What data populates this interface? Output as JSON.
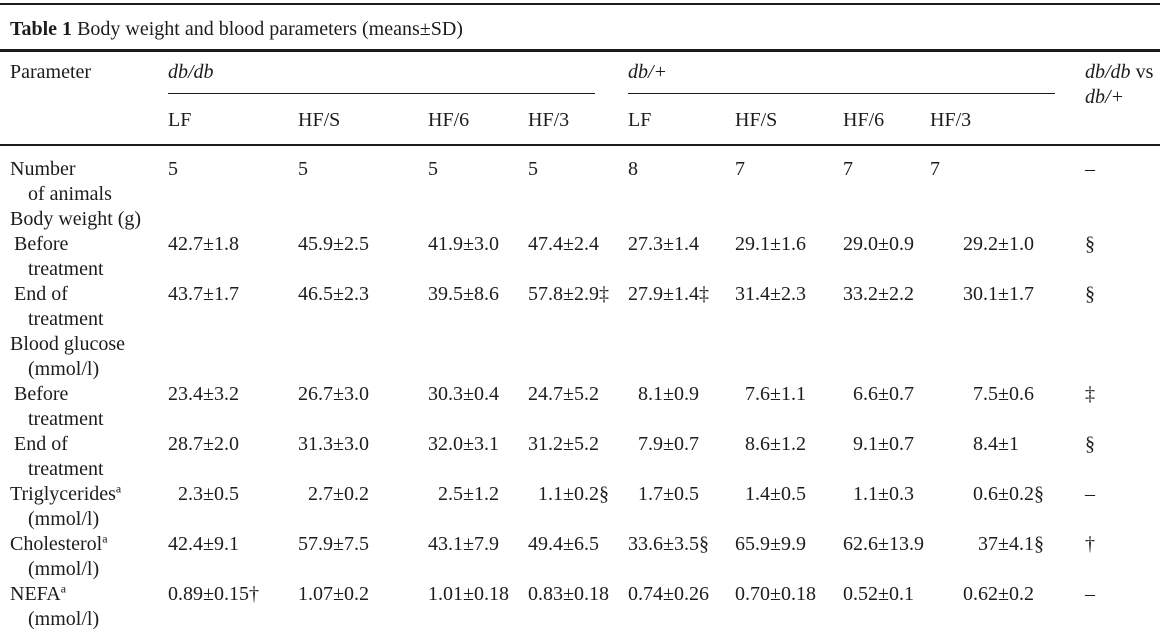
{
  "colors": {
    "ink": "#1c1c1c",
    "rule": "#1c1c1c"
  },
  "caption": {
    "label": "Table 1",
    "text": " Body weight and blood parameters (means±SD)"
  },
  "header": {
    "parameter": "Parameter",
    "group1": "db/db",
    "group2": "db/+",
    "vs": {
      "line1_em": "db/db",
      "line1_rest": " vs",
      "line2_em": "db/+"
    },
    "subcols": [
      "LF",
      "HF/S",
      "HF/6",
      "HF/3",
      "LF",
      "HF/S",
      "HF/6",
      "HF/3"
    ]
  },
  "rows": [
    {
      "label_lines": [
        {
          "t": "Number",
          "ind": 0
        },
        {
          "t": "of animals",
          "ind": 2
        }
      ],
      "values": [
        "5",
        "5",
        "5",
        "5",
        "8",
        "7",
        "7",
        "7"
      ],
      "sig": "–"
    },
    {
      "label_lines": [
        {
          "t": "Body weight (g)",
          "ind": 0
        }
      ],
      "values": [
        "",
        "",
        "",
        "",
        "",
        "",
        "",
        ""
      ],
      "sig": ""
    },
    {
      "label_lines": [
        {
          "t": "Before",
          "ind": 1
        },
        {
          "t": "treatment",
          "ind": 2
        }
      ],
      "values": [
        "42.7±1.8",
        "45.9±2.5",
        "41.9±3.0",
        "47.4±2.4",
        "27.3±1.4",
        "29.1±1.6",
        "29.0±0.9",
        "29.2±1.0"
      ],
      "sig": "§"
    },
    {
      "label_lines": [
        {
          "t": "End of",
          "ind": 1
        },
        {
          "t": "treatment",
          "ind": 2
        }
      ],
      "values": [
        "43.7±1.7",
        "46.5±2.3",
        "39.5±8.6",
        "57.8±2.9‡",
        "27.9±1.4‡",
        "31.4±2.3",
        "33.2±2.2",
        "30.1±1.7"
      ],
      "sig": "§"
    },
    {
      "label_lines": [
        {
          "t": "Blood glucose",
          "ind": 0
        },
        {
          "t": "(mmol/l)",
          "ind": 2
        }
      ],
      "values": [
        "",
        "",
        "",
        "",
        "",
        "",
        "",
        ""
      ],
      "sig": ""
    },
    {
      "label_lines": [
        {
          "t": "Before",
          "ind": 1
        },
        {
          "t": "treatment",
          "ind": 2
        }
      ],
      "values": [
        "23.4±3.2",
        "26.7±3.0",
        "30.3±0.4",
        "24.7±5.2",
        "8.1±0.9",
        "7.6±1.1",
        "6.6±0.7",
        "7.5±0.6"
      ],
      "sig": "‡"
    },
    {
      "label_lines": [
        {
          "t": "End of",
          "ind": 1
        },
        {
          "t": "treatment",
          "ind": 2
        }
      ],
      "values": [
        "28.7±2.0",
        "31.3±3.0",
        "32.0±3.1",
        "31.2±5.2",
        "7.9±0.7",
        "8.6±1.2",
        "9.1±0.7",
        "8.4±1"
      ],
      "sig": "§"
    },
    {
      "label_lines": [
        {
          "t": "Triglycerides",
          "sup": "a",
          "ind": 0
        },
        {
          "t": "(mmol/l)",
          "ind": 2
        }
      ],
      "values": [
        "2.3±0.5",
        "2.7±0.2",
        "2.5±1.2",
        "1.1±0.2§",
        "1.7±0.5",
        "1.4±0.5",
        "1.1±0.3",
        "0.6±0.2§"
      ],
      "sig": "–"
    },
    {
      "label_lines": [
        {
          "t": "Cholesterol",
          "sup": "a",
          "ind": 0
        },
        {
          "t": "(mmol/l)",
          "ind": 2
        }
      ],
      "values": [
        "42.4±9.1",
        "57.9±7.5",
        "43.1±7.9",
        "49.4±6.5",
        "33.6±3.5§",
        "65.9±9.9",
        "62.6±13.9",
        "37±4.1§"
      ],
      "sig": "†"
    },
    {
      "label_lines": [
        {
          "t": "NEFA",
          "sup": "a",
          "ind": 0
        },
        {
          "t": "(mmol/l)",
          "ind": 2
        }
      ],
      "values": [
        "0.89±0.15†",
        "1.07±0.2",
        "1.01±0.18",
        "0.83±0.18",
        "0.74±0.26",
        "0.70±0.18",
        "0.52±0.1",
        "0.62±0.2"
      ],
      "sig": "–"
    }
  ]
}
